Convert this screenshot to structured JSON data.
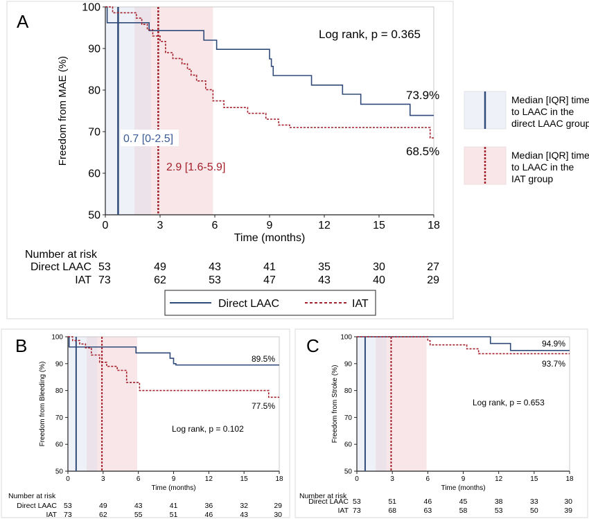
{
  "colors": {
    "direct": "#2f4a78",
    "iat": "#a31f2a",
    "direct_shade": "#eef1f8",
    "iat_shade": "#f8e6e8",
    "overlap_shade": "#ebe2ea",
    "median_label_direct": "#3a5a96",
    "median_label_iat": "#a31f2a"
  },
  "right_legend": {
    "direct_text": [
      "Median [IQR] time",
      "to LAAC in the",
      "direct LAAC group"
    ],
    "iat_text": [
      "Median [IQR] time",
      "to LAAC in the",
      "IAT group"
    ]
  },
  "legend_bottom": {
    "direct": "Direct LAAC",
    "iat": "IAT"
  },
  "chart_data": [
    {
      "panel": "A",
      "type": "line",
      "subtype": "kaplan-meier",
      "ylabel": "Freedom from MAE (%)",
      "xlabel": "Time (months)",
      "xlim": [
        0,
        18
      ],
      "ylim": [
        50,
        100
      ],
      "xticks": [
        0,
        3,
        6,
        9,
        12,
        15,
        18
      ],
      "yticks": [
        50,
        60,
        70,
        80,
        90,
        100
      ],
      "annotation": "Log rank, p = 0.365",
      "series": [
        {
          "name": "Direct LAAC",
          "style": "solid",
          "x": [
            0,
            0.1,
            2.4,
            5.4,
            6.1,
            9.0,
            9.1,
            9.2,
            11.3,
            13.0,
            14.0,
            16.7,
            18
          ],
          "y": [
            100,
            96.2,
            94.3,
            92.0,
            89.8,
            87.5,
            85.7,
            83.5,
            81.2,
            79.0,
            76.6,
            73.9,
            73.9
          ],
          "end_label": "73.9%"
        },
        {
          "name": "IAT",
          "style": "dashed",
          "x": [
            0,
            0.4,
            1.7,
            2.0,
            2.3,
            2.6,
            3.0,
            3.3,
            3.7,
            4.2,
            4.5,
            4.7,
            5.0,
            5.5,
            5.9,
            6.5,
            7.8,
            8.8,
            9.5,
            10.1,
            11.9,
            17.8,
            18
          ],
          "y": [
            100,
            98.6,
            97.3,
            95.8,
            94.5,
            93.0,
            91.7,
            89.0,
            87.6,
            86.3,
            85.0,
            83.6,
            82.2,
            80.1,
            77.4,
            75.8,
            74.4,
            73.0,
            71.6,
            71.0,
            71.0,
            68.5,
            68.5
          ],
          "end_label": "68.5%"
        }
      ],
      "median_bands": [
        {
          "group": "Direct LAAC",
          "median": 0.7,
          "q1": 0,
          "q3": 2.5,
          "label": "0.7 [0-2.5]"
        },
        {
          "group": "IAT",
          "median": 2.9,
          "q1": 1.6,
          "q3": 5.9,
          "label": "2.9 [1.6-5.9]"
        }
      ],
      "risk_table": {
        "header": "Number at risk",
        "rows": [
          {
            "label": "Direct LAAC",
            "values": [
              53,
              49,
              43,
              41,
              35,
              30,
              27
            ]
          },
          {
            "label": "IAT",
            "values": [
              73,
              62,
              53,
              47,
              43,
              40,
              29
            ]
          }
        ]
      }
    },
    {
      "panel": "B",
      "type": "line",
      "subtype": "kaplan-meier",
      "ylabel": "Freedom from Bleeding (%)",
      "xlabel": "Time (months)",
      "xlim": [
        0,
        18
      ],
      "ylim": [
        50,
        100
      ],
      "xticks": [
        0,
        3,
        6,
        9,
        12,
        15,
        18
      ],
      "yticks": [
        50,
        60,
        70,
        80,
        90,
        100
      ],
      "annotation": "Log rank, p = 0.102",
      "series": [
        {
          "name": "Direct LAAC",
          "style": "solid",
          "x": [
            0,
            0.1,
            5.8,
            8.7,
            9.0,
            9.2,
            18
          ],
          "y": [
            100,
            96.2,
            94.0,
            92.0,
            90.0,
            89.5,
            89.5
          ],
          "end_label": "89.5%"
        },
        {
          "name": "IAT",
          "style": "dashed",
          "x": [
            0,
            0.4,
            1.0,
            1.5,
            2.0,
            2.7,
            3.3,
            4.2,
            5.0,
            5.5,
            6.1,
            17.1,
            18
          ],
          "y": [
            100,
            98.6,
            97.3,
            95.9,
            93.2,
            90.5,
            89.0,
            87.5,
            83.0,
            83.0,
            80.0,
            77.5,
            77.5
          ],
          "end_label": "77.5%"
        }
      ],
      "median_bands": [
        {
          "group": "Direct LAAC",
          "median": 0.7,
          "q1": 0,
          "q3": 2.5
        },
        {
          "group": "IAT",
          "median": 2.9,
          "q1": 1.6,
          "q3": 5.9
        }
      ],
      "risk_table": {
        "header": "Number at risk",
        "rows": [
          {
            "label": "Direct LAAC",
            "values": [
              53,
              49,
              43,
              41,
              36,
              32,
              29
            ]
          },
          {
            "label": "IAT",
            "values": [
              73,
              62,
              55,
              51,
              46,
              43,
              30
            ]
          }
        ]
      }
    },
    {
      "panel": "C",
      "type": "line",
      "subtype": "kaplan-meier",
      "ylabel": "Freedom from Stroke (%)",
      "xlabel": "Time (months)",
      "xlim": [
        0,
        18
      ],
      "ylim": [
        50,
        100
      ],
      "xticks": [
        0,
        3,
        6,
        9,
        12,
        15,
        18
      ],
      "yticks": [
        50,
        60,
        70,
        80,
        90,
        100
      ],
      "annotation": "Log rank, p = 0.653",
      "series": [
        {
          "name": "Direct LAAC",
          "style": "solid",
          "x": [
            0,
            11.3,
            13.0,
            18
          ],
          "y": [
            100,
            97.5,
            94.9,
            94.9
          ],
          "end_label": "94.9%"
        },
        {
          "name": "IAT",
          "style": "dashed",
          "x": [
            0,
            6.0,
            6.2,
            9.3,
            10.3,
            18
          ],
          "y": [
            100,
            98.5,
            97.0,
            95.5,
            93.7,
            93.7
          ],
          "end_label": "93.7%"
        }
      ],
      "median_bands": [
        {
          "group": "Direct LAAC",
          "median": 0.7,
          "q1": 0,
          "q3": 2.5
        },
        {
          "group": "IAT",
          "median": 2.9,
          "q1": 1.6,
          "q3": 5.9
        }
      ],
      "risk_table": {
        "header": "Number at risk",
        "rows": [
          {
            "label": "Direct LAAC",
            "values": [
              53,
              51,
              46,
              45,
              38,
              33,
              30
            ]
          },
          {
            "label": "IAT",
            "values": [
              73,
              68,
              63,
              58,
              53,
              50,
              39
            ]
          }
        ]
      }
    }
  ]
}
